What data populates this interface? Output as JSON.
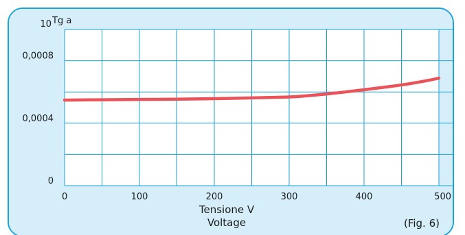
{
  "colors": {
    "panel_background": "#d6eef9",
    "panel_border": "#1aa3d9",
    "plot_background": "#ffffff",
    "grid": "#1aa3d9",
    "curve": "#e8545a"
  },
  "chart_data": {
    "type": "line",
    "title": "",
    "ylabel": "Tg a",
    "xlabel_line1": "Tensione V",
    "xlabel_line2": "Voltage",
    "figure_label": "(Fig. 6)",
    "top_left_tick": "10",
    "xlim": [
      0,
      500
    ],
    "ylim": [
      0,
      0.001
    ],
    "x_ticks": [
      0,
      100,
      200,
      300,
      400,
      500
    ],
    "x_tick_labels": [
      "0",
      "100",
      "200",
      "300",
      "400",
      "500"
    ],
    "y_tick_values": [
      0,
      0.0004,
      0.0008
    ],
    "y_tick_labels": [
      "0",
      "0,0004",
      "0,0008"
    ],
    "grid": true,
    "grid_x_step": 50,
    "grid_y_step": 0.0002,
    "series": [
      {
        "x": [
          0,
          50,
          100,
          150,
          200,
          250,
          300,
          330,
          360,
          400,
          430,
          460,
          480,
          500
        ],
        "y": [
          0.000548,
          0.00055,
          0.000552,
          0.000554,
          0.000557,
          0.000562,
          0.000568,
          0.000578,
          0.000592,
          0.000614,
          0.000632,
          0.000652,
          0.000669,
          0.000688
        ]
      }
    ]
  }
}
